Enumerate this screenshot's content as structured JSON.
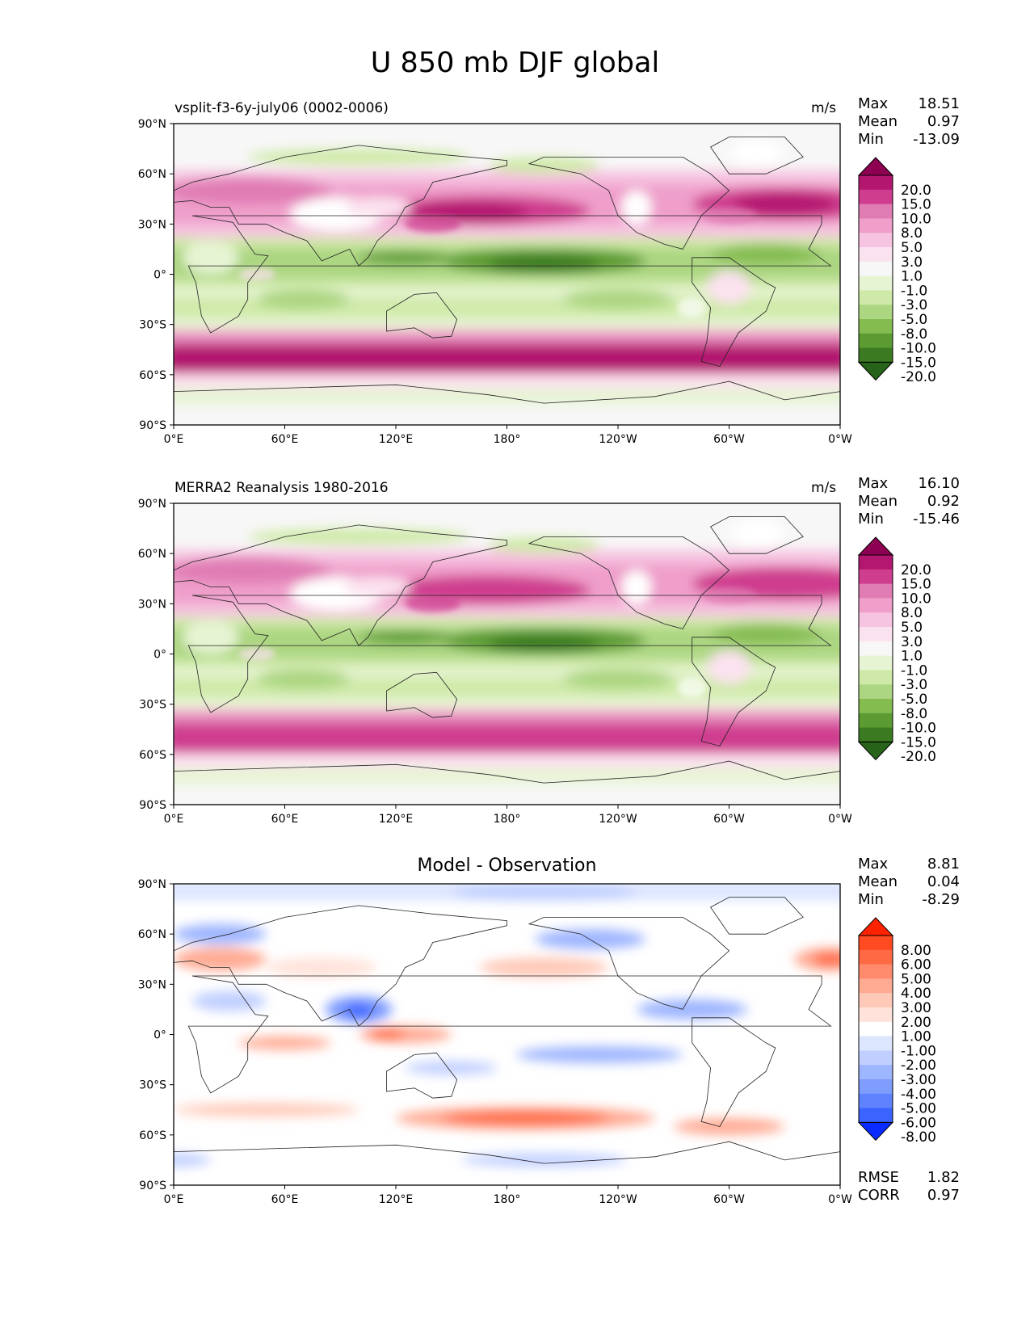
{
  "figure": {
    "title": "U 850 mb DJF global",
    "x_ticks": [
      "0°E",
      "60°E",
      "120°E",
      "180°",
      "120°W",
      "60°W",
      "0°W"
    ],
    "y_ticks": [
      "90°N",
      "60°N",
      "30°N",
      "0°",
      "30°S",
      "60°S",
      "90°S"
    ]
  },
  "panels": [
    {
      "left_title": "vsplit-f3-6y-july06 (0002-0006)",
      "center_title": "",
      "units": "m/s",
      "stats": [
        {
          "label": "Max",
          "value": "18.51"
        },
        {
          "label": "Mean",
          "value": "0.97"
        },
        {
          "label": "Min",
          "value": "-13.09"
        }
      ],
      "extra_stats": []
    },
    {
      "left_title": "MERRA2 Reanalysis 1980-2016",
      "center_title": "",
      "units": "m/s",
      "stats": [
        {
          "label": "Max",
          "value": "16.10"
        },
        {
          "label": "Mean",
          "value": "0.92"
        },
        {
          "label": "Min",
          "value": "-15.46"
        }
      ],
      "extra_stats": []
    },
    {
      "left_title": "",
      "center_title": "Model - Observation",
      "units": "",
      "stats": [
        {
          "label": "Max",
          "value": "8.81"
        },
        {
          "label": "Mean",
          "value": "0.04"
        },
        {
          "label": "Min",
          "value": "-8.29"
        }
      ],
      "extra_stats": [
        {
          "label": "RMSE",
          "value": "1.82"
        },
        {
          "label": "CORR",
          "value": "0.97"
        }
      ]
    }
  ],
  "colorbars": {
    "wind": {
      "labels": [
        "20.0",
        "15.0",
        "10.0",
        "8.0",
        "5.0",
        "3.0",
        "1.0",
        "-1.0",
        "-3.0",
        "-5.0",
        "-8.0",
        "-10.0",
        "-15.0",
        "-20.0"
      ],
      "colors": [
        "#8e0152",
        "#b3176f",
        "#cf3d8f",
        "#e07cb4",
        "#ef9fca",
        "#f6c3e0",
        "#fbe2ef",
        "#f7f7f7",
        "#e7f4d4",
        "#cfeaa8",
        "#acd681",
        "#84bc50",
        "#5b9b31",
        "#3b7a20",
        "#276419"
      ]
    },
    "diff": {
      "labels": [
        "8.00",
        "6.00",
        "5.00",
        "4.00",
        "3.00",
        "2.00",
        "1.00",
        "-1.00",
        "-2.00",
        "-3.00",
        "-4.00",
        "-5.00",
        "-6.00",
        "-8.00"
      ],
      "colors": [
        "#ff2200",
        "#ff4a22",
        "#ff6a45",
        "#ff8b6c",
        "#ffab94",
        "#ffc9b8",
        "#ffe3da",
        "#ffffff",
        "#dde6ff",
        "#c0cfff",
        "#9eb5ff",
        "#7f9cff",
        "#5f82ff",
        "#3b63ff",
        "#0a2bff"
      ]
    }
  },
  "chart_data": [
    {
      "type": "heatmap",
      "title": "vsplit-f3-6y-july06 (0002-0006)",
      "units": "m/s",
      "x_range": [
        0,
        360
      ],
      "y_range": [
        -90,
        90
      ],
      "zonal_mean_profile": {
        "lat": [
          80,
          60,
          50,
          40,
          30,
          20,
          10,
          0,
          -10,
          -20,
          -30,
          -40,
          -50,
          -60,
          -70,
          -80
        ],
        "u": [
          2,
          8,
          10,
          12,
          8,
          -3,
          -8,
          -6,
          -2,
          -4,
          0,
          6,
          16,
          12,
          -2,
          0
        ]
      },
      "max": 18.51,
      "mean": 0.97,
      "min": -13.09
    },
    {
      "type": "heatmap",
      "title": "MERRA2 Reanalysis 1980-2016",
      "units": "m/s",
      "x_range": [
        0,
        360
      ],
      "y_range": [
        -90,
        90
      ],
      "zonal_mean_profile": {
        "lat": [
          80,
          60,
          50,
          40,
          30,
          20,
          10,
          0,
          -10,
          -20,
          -30,
          -40,
          -50,
          -60,
          -70,
          -80
        ],
        "u": [
          1,
          6,
          9,
          11,
          8,
          -3,
          -8,
          -6,
          -2,
          -4,
          0,
          5,
          13,
          10,
          -2,
          0
        ]
      },
      "max": 16.1,
      "mean": 0.92,
      "min": -15.46
    },
    {
      "type": "heatmap",
      "title": "Model - Observation",
      "units": "",
      "x_range": [
        0,
        360
      ],
      "y_range": [
        -90,
        90
      ],
      "max": 8.81,
      "mean": 0.04,
      "min": -8.29,
      "rmse": 1.82,
      "corr": 0.97
    }
  ]
}
